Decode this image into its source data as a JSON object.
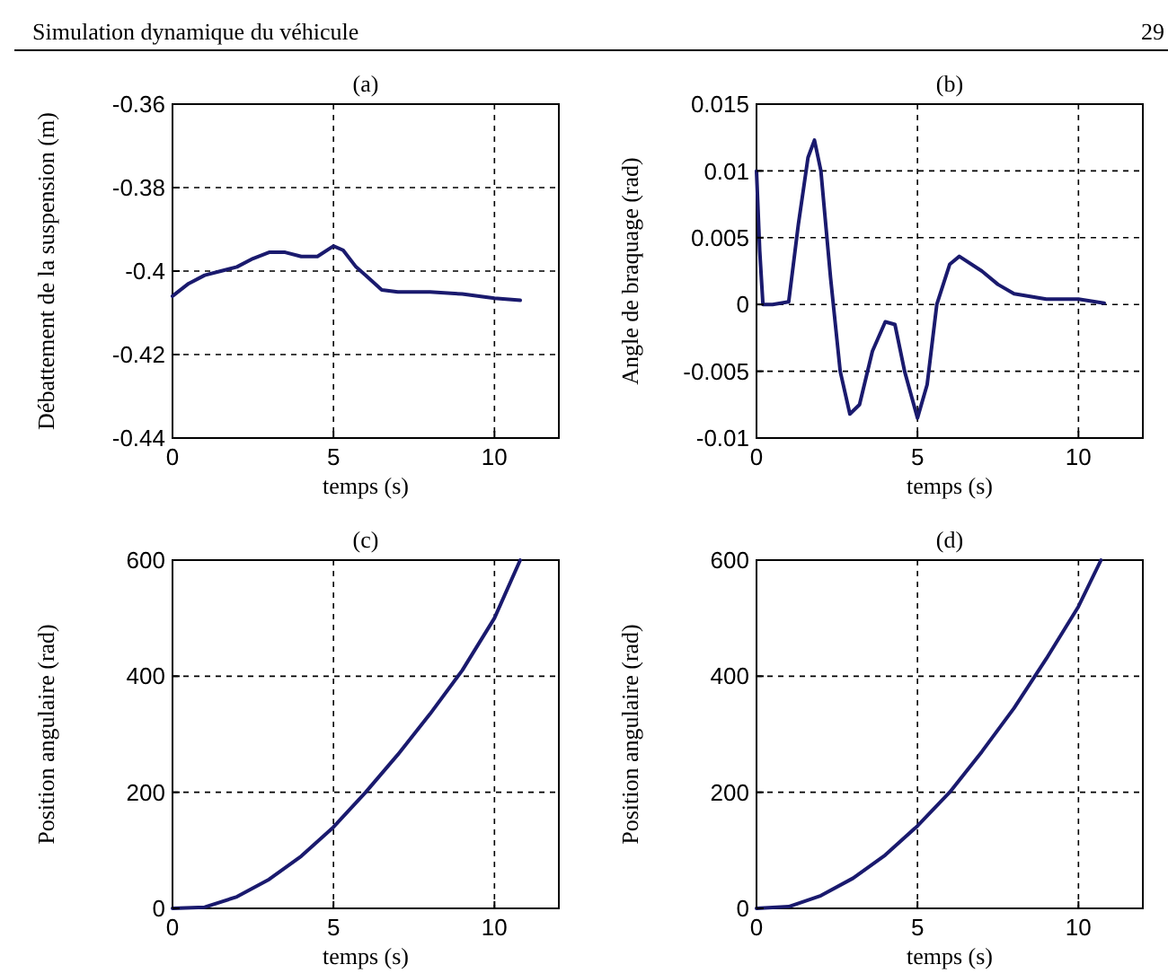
{
  "chart_data": [
    {
      "type": "line",
      "title": "(a)",
      "xlabel": "temps (s)",
      "ylabel": "Débattement de la suspension (m)",
      "annotations": [
        "Simulation dynamique du véhicule",
        "29"
      ],
      "xlim": [
        0,
        12
      ],
      "xticks": [
        0,
        5,
        10
      ],
      "ylim": [
        -0.44,
        -0.36
      ],
      "yticks": [
        -0.44,
        -0.42,
        -0.4,
        -0.38,
        -0.36
      ],
      "grid": true,
      "series": [
        {
          "color": "#1a1a6e",
          "x": [
            0,
            0.5,
            1,
            1.5,
            2,
            2.5,
            3,
            3.5,
            4,
            4.5,
            5,
            5.3,
            5.7,
            6,
            6.5,
            7,
            8,
            9,
            10,
            10.8
          ],
          "values": [
            -0.406,
            -0.403,
            -0.401,
            -0.4,
            -0.399,
            -0.397,
            -0.3955,
            -0.3955,
            -0.3965,
            -0.3965,
            -0.394,
            -0.395,
            -0.399,
            -0.401,
            -0.4045,
            -0.405,
            -0.405,
            -0.4055,
            -0.4065,
            -0.407
          ]
        }
      ]
    },
    {
      "type": "line",
      "title": "(b)",
      "xlabel": "temps (s)",
      "ylabel": "Angle de braquage (rad)",
      "xlim": [
        0,
        12
      ],
      "xticks": [
        0,
        5,
        10
      ],
      "ylim": [
        -0.01,
        0.015
      ],
      "yticks": [
        -0.01,
        -0.005,
        0,
        0.005,
        0.01,
        0.015
      ],
      "grid": true,
      "series": [
        {
          "color": "#1a1a6e",
          "x": [
            0,
            0.1,
            0.2,
            0.5,
            1,
            1.3,
            1.6,
            1.8,
            2,
            2.3,
            2.6,
            2.9,
            3.2,
            3.6,
            4,
            4.3,
            4.6,
            5,
            5.3,
            5.6,
            6,
            6.3,
            7,
            7.5,
            8,
            9,
            10,
            10.8
          ],
          "values": [
            0.01,
            0.004,
            0,
            0,
            0.0002,
            0.006,
            0.011,
            0.0123,
            0.01,
            0.002,
            -0.005,
            -0.0082,
            -0.0075,
            -0.0035,
            -0.0013,
            -0.0015,
            -0.005,
            -0.0085,
            -0.006,
            0,
            0.003,
            0.0036,
            0.0025,
            0.0015,
            0.0008,
            0.0004,
            0.0004,
            0.0001
          ]
        }
      ]
    },
    {
      "type": "line",
      "title": "(c)",
      "xlabel": "temps (s)",
      "ylabel": "Position angulaire (rad)",
      "xlim": [
        0,
        12
      ],
      "xticks": [
        0,
        5,
        10
      ],
      "ylim": [
        0,
        600
      ],
      "yticks": [
        0,
        200,
        400,
        600
      ],
      "grid": true,
      "series": [
        {
          "color": "#1a1a6e",
          "x": [
            0,
            1,
            2,
            3,
            4,
            5,
            6,
            7,
            8,
            9,
            10,
            10.8
          ],
          "values": [
            0,
            2,
            20,
            50,
            90,
            140,
            200,
            265,
            335,
            410,
            500,
            600
          ]
        }
      ]
    },
    {
      "type": "line",
      "title": "(d)",
      "xlabel": "temps (s)",
      "ylabel": "Position angulaire (rad)",
      "xlim": [
        0,
        12
      ],
      "xticks": [
        0,
        5,
        10
      ],
      "ylim": [
        0,
        600
      ],
      "yticks": [
        0,
        200,
        400,
        600
      ],
      "grid": true,
      "series": [
        {
          "color": "#1a1a6e",
          "x": [
            0,
            1,
            2,
            3,
            4,
            5,
            6,
            7,
            8,
            9,
            10,
            10.7
          ],
          "values": [
            0,
            3,
            22,
            52,
            92,
            142,
            200,
            270,
            345,
            430,
            520,
            600
          ]
        }
      ]
    }
  ]
}
